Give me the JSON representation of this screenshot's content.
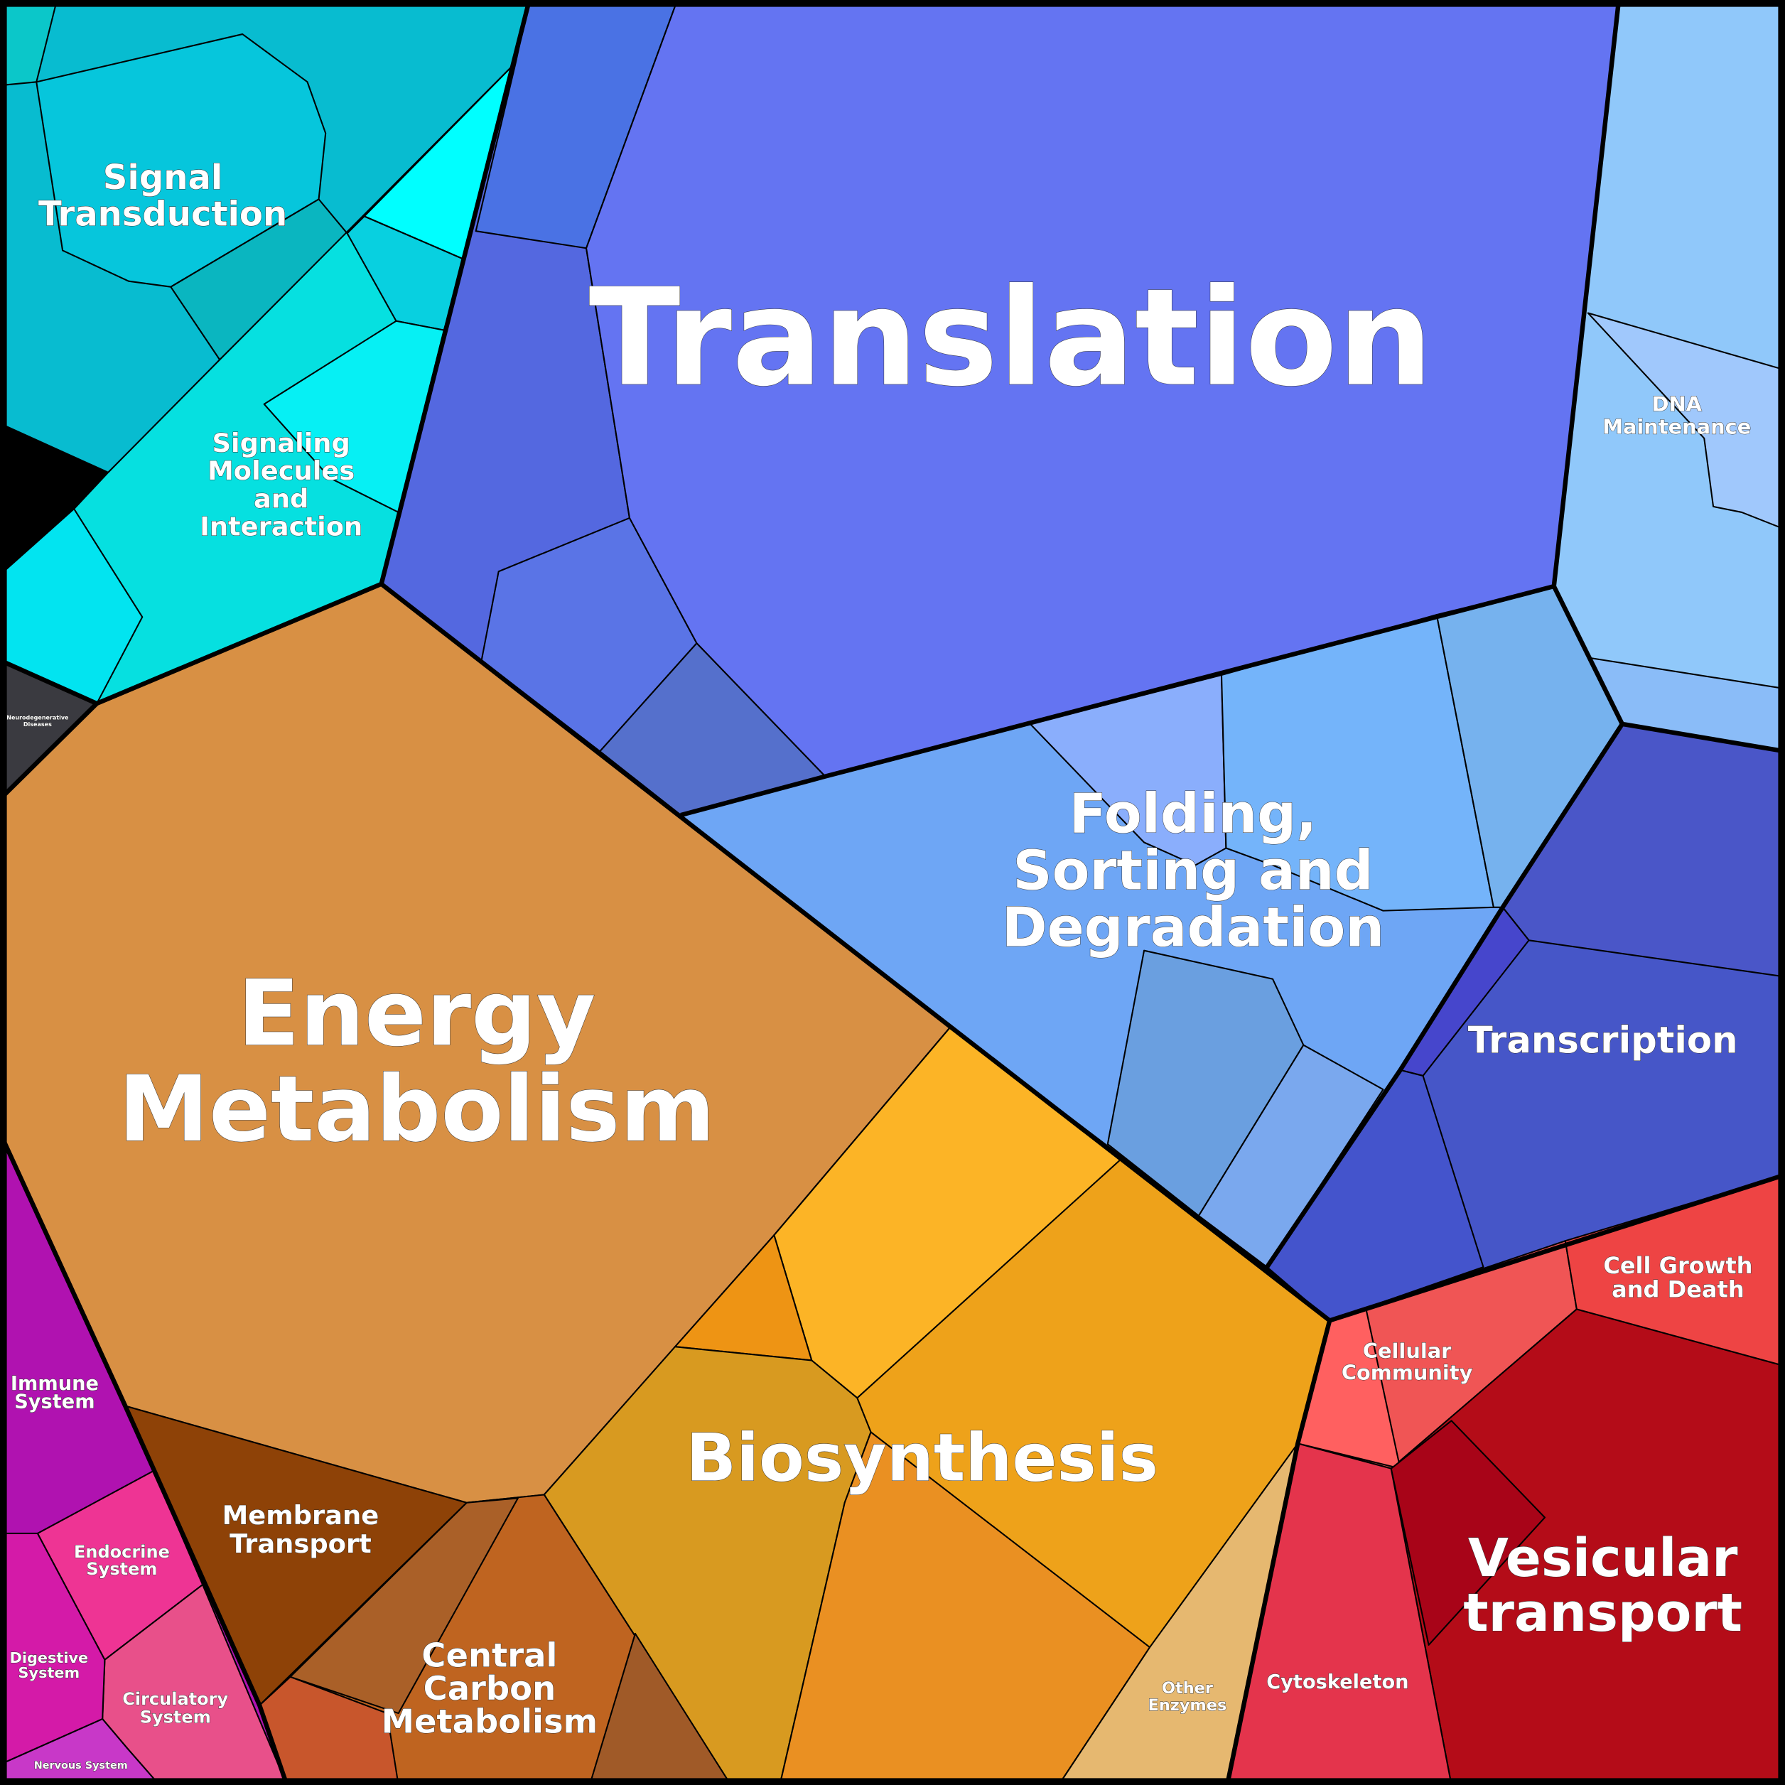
{
  "regions": [
    {
      "lines": [
        "Signal",
        "Transduction"
      ]
    },
    {
      "lines": [
        "Signaling",
        "Molecules",
        "and",
        "Interaction"
      ]
    },
    {
      "lines": [
        "Translation"
      ]
    },
    {
      "lines": [
        "DNA",
        "Maintenance"
      ]
    },
    {
      "lines": [
        "Folding,",
        "Sorting and",
        "Degradation"
      ]
    },
    {
      "lines": [
        "Transcription"
      ]
    },
    {
      "lines": [
        "Energy",
        "Metabolism"
      ]
    },
    {
      "lines": [
        "Neurodegenerative",
        "Diseases"
      ]
    },
    {
      "lines": [
        "Immune",
        "System"
      ]
    },
    {
      "lines": [
        "Endocrine",
        "System"
      ]
    },
    {
      "lines": [
        "Digestive",
        "System"
      ]
    },
    {
      "lines": [
        "Circulatory",
        "System"
      ]
    },
    {
      "lines": [
        "Nervous System"
      ]
    },
    {
      "lines": [
        "Membrane",
        "Transport"
      ]
    },
    {
      "lines": [
        "Central",
        "Carbon",
        "Metabolism"
      ]
    },
    {
      "lines": [
        "Biosynthesis"
      ]
    },
    {
      "lines": [
        "Other",
        "Enzymes"
      ]
    },
    {
      "lines": [
        "Cellular",
        "Community"
      ]
    },
    {
      "lines": [
        "Cell Growth",
        "and Death"
      ]
    },
    {
      "lines": [
        "Cytoskeleton"
      ]
    },
    {
      "lines": [
        "Vesicular",
        "transport"
      ]
    }
  ]
}
